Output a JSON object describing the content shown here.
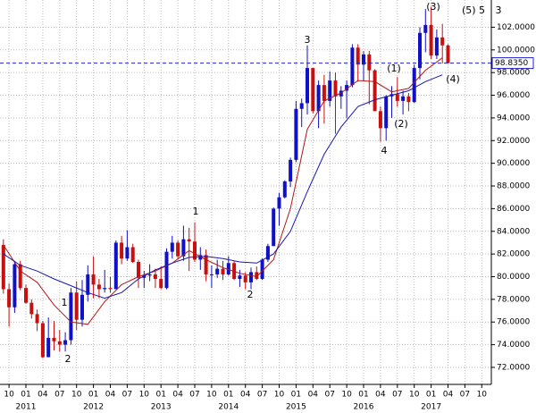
{
  "chart_data": {
    "type": "candlestick",
    "up_color": "#1010c8",
    "down_color": "#c81010",
    "grid": true,
    "x": [
      "2010-09",
      "2010-10",
      "2010-11",
      "2010-12",
      "2011-01",
      "2011-02",
      "2011-03",
      "2011-04",
      "2011-05",
      "2011-06",
      "2011-07",
      "2011-08",
      "2011-09",
      "2011-10",
      "2011-11",
      "2011-12",
      "2012-01",
      "2012-02",
      "2012-03",
      "2012-04",
      "2012-05",
      "2012-06",
      "2012-07",
      "2012-08",
      "2012-09",
      "2012-10",
      "2012-11",
      "2012-12",
      "2013-01",
      "2013-02",
      "2013-03",
      "2013-04",
      "2013-05",
      "2013-06",
      "2013-07",
      "2013-08",
      "2013-09",
      "2013-10",
      "2013-11",
      "2013-12",
      "2014-01",
      "2014-02",
      "2014-03",
      "2014-04",
      "2014-05",
      "2014-06",
      "2014-07",
      "2014-08",
      "2014-09",
      "2014-10",
      "2014-11",
      "2014-12",
      "2015-01",
      "2015-02",
      "2015-03",
      "2015-04",
      "2015-05",
      "2015-06",
      "2015-07",
      "2015-08",
      "2015-09",
      "2015-10",
      "2015-11",
      "2015-12",
      "2016-01",
      "2016-02",
      "2016-03",
      "2016-04",
      "2016-05",
      "2016-06",
      "2016-07",
      "2016-08",
      "2016-09",
      "2016-10",
      "2016-11",
      "2016-12",
      "2017-01",
      "2017-02",
      "2017-03",
      "2017-04"
    ],
    "open": [
      82.8,
      78.9,
      77.3,
      81.1,
      79.0,
      77.7,
      76.7,
      75.9,
      72.9,
      74.6,
      74.3,
      74.0,
      74.4,
      78.6,
      76.2,
      78.4,
      80.2,
      79.3,
      78.9,
      79.0,
      78.9,
      83.0,
      81.6,
      82.6,
      81.3,
      79.9,
      80.1,
      80.2,
      79.8,
      79.0,
      82.2,
      83.0,
      81.8,
      83.3,
      83.1,
      81.5,
      81.9,
      80.2,
      80.2,
      80.7,
      80.2,
      81.2,
      79.8,
      80.1,
      79.5,
      80.4,
      79.8,
      81.5,
      82.7,
      86.0,
      87.0,
      88.4,
      90.3,
      94.8,
      95.3,
      98.4,
      94.6,
      96.9,
      95.5,
      97.3,
      95.9,
      96.4,
      96.9,
      100.2,
      98.7,
      99.6,
      98.2,
      94.6,
      93.1,
      95.9,
      96.1,
      95.5,
      95.9,
      95.4,
      98.4,
      101.5,
      102.2,
      99.5,
      101.1,
      100.4
    ],
    "high": [
      83.3,
      79.4,
      81.4,
      81.4,
      79.3,
      78.0,
      77.1,
      76.1,
      76.4,
      76.1,
      75.3,
      75.1,
      79.0,
      79.6,
      79.7,
      81.0,
      81.8,
      79.8,
      80.6,
      80.0,
      83.2,
      83.6,
      84.1,
      82.9,
      81.5,
      80.5,
      81.1,
      80.7,
      80.9,
      82.5,
      83.6,
      83.2,
      84.5,
      84.3,
      84.8,
      82.6,
      82.4,
      81.0,
      81.5,
      81.4,
      81.8,
      81.4,
      80.6,
      80.4,
      80.8,
      80.9,
      81.6,
      82.9,
      86.1,
      87.4,
      88.5,
      90.5,
      95.5,
      95.7,
      100.4,
      98.4,
      97.3,
      97.8,
      98.1,
      98.0,
      96.8,
      97.3,
      100.5,
      100.5,
      99.9,
      99.9,
      98.3,
      95.0,
      96.0,
      96.8,
      97.6,
      96.4,
      96.2,
      98.7,
      102.0,
      103.6,
      103.8,
      101.8,
      102.3,
      100.5
    ],
    "low": [
      78.5,
      75.6,
      76.8,
      78.8,
      77.6,
      76.3,
      75.2,
      72.8,
      72.9,
      73.5,
      73.4,
      73.4,
      74.0,
      75.3,
      75.6,
      77.8,
      78.1,
      78.1,
      78.6,
      78.6,
      78.9,
      81.1,
      81.4,
      81.2,
      79.0,
      79.0,
      79.6,
      79.0,
      78.9,
      78.9,
      81.6,
      81.5,
      81.4,
      80.5,
      81.3,
      80.6,
      79.6,
      79.0,
      79.9,
      79.7,
      80.1,
      79.7,
      79.1,
      78.9,
      78.9,
      79.7,
      79.7,
      81.3,
      82.7,
      84.5,
      86.9,
      87.9,
      90.1,
      93.2,
      94.3,
      94.4,
      93.1,
      93.5,
      95.0,
      92.6,
      94.8,
      94.0,
      96.7,
      97.2,
      97.3,
      95.2,
      94.6,
      91.9,
      92.0,
      94.0,
      95.0,
      94.3,
      94.6,
      95.3,
      97.4,
      99.8,
      99.2,
      99.2,
      98.8,
      98.8
    ],
    "close": [
      78.9,
      77.3,
      81.1,
      79.0,
      77.7,
      76.7,
      75.9,
      72.9,
      74.6,
      74.3,
      74.0,
      74.4,
      78.6,
      76.2,
      78.4,
      80.2,
      79.3,
      78.9,
      79.0,
      78.9,
      83.0,
      81.6,
      82.6,
      81.3,
      79.9,
      80.1,
      80.2,
      79.8,
      79.0,
      82.2,
      83.0,
      81.8,
      83.3,
      83.1,
      81.5,
      81.9,
      80.2,
      80.2,
      80.7,
      80.2,
      81.2,
      79.8,
      80.1,
      79.5,
      80.4,
      79.8,
      81.5,
      82.7,
      86.0,
      87.0,
      88.4,
      90.3,
      94.8,
      95.3,
      98.4,
      94.6,
      96.9,
      95.5,
      97.3,
      95.9,
      96.4,
      96.9,
      100.2,
      98.7,
      99.6,
      98.2,
      94.6,
      93.1,
      95.9,
      96.1,
      95.5,
      95.9,
      95.4,
      98.4,
      101.5,
      102.2,
      99.5,
      101.1,
      100.4,
      98.835
    ],
    "lines": [
      {
        "color": "#b01818",
        "x": [
          "2010-09",
          "2010-12",
          "2011-03",
          "2011-06",
          "2011-09",
          "2011-12",
          "2012-03",
          "2012-06",
          "2012-09",
          "2012-12",
          "2013-03",
          "2013-06",
          "2013-09",
          "2013-12",
          "2014-03",
          "2014-06",
          "2014-09",
          "2014-12",
          "2015-03",
          "2015-06",
          "2015-09",
          "2015-12",
          "2016-03",
          "2016-06",
          "2016-09",
          "2016-12",
          "2017-03"
        ],
        "values": [
          82.8,
          80.5,
          79.5,
          77.5,
          76,
          75.8,
          77.8,
          79.3,
          80,
          80.5,
          81.2,
          82.3,
          81.5,
          80.8,
          80.3,
          80,
          81.5,
          86,
          93,
          95.5,
          96.2,
          97.3,
          97.2,
          96.3,
          96.6,
          98.2,
          99.3
        ]
      },
      {
        "color": "#1818b0",
        "x": [
          "2010-09",
          "2010-12",
          "2011-03",
          "2011-06",
          "2011-09",
          "2011-12",
          "2012-03",
          "2012-06",
          "2012-09",
          "2012-12",
          "2013-03",
          "2013-06",
          "2013-09",
          "2013-12",
          "2014-03",
          "2014-06",
          "2014-09",
          "2014-12",
          "2015-03",
          "2015-06",
          "2015-09",
          "2015-12",
          "2016-03",
          "2016-06",
          "2016-09",
          "2016-12",
          "2017-03"
        ],
        "values": [
          82,
          81,
          80.5,
          79.8,
          79.2,
          78.6,
          78.1,
          78.6,
          79.8,
          80.6,
          81.2,
          81.7,
          81.8,
          81.6,
          81.3,
          81.2,
          82,
          84,
          87.5,
          90.8,
          93.2,
          95,
          95.6,
          96,
          96.4,
          97.2,
          97.8
        ]
      }
    ],
    "xlim": [
      "2010-09",
      "2017-11"
    ],
    "ylim": [
      70.5,
      104.4
    ],
    "yticks": [
      {
        "value": 72,
        "label": "72.0000"
      },
      {
        "value": 74,
        "label": "74.0000"
      },
      {
        "value": 76,
        "label": "76.0000"
      },
      {
        "value": 78,
        "label": "78.0000"
      },
      {
        "value": 80,
        "label": "80.0000"
      },
      {
        "value": 82,
        "label": "82.0000"
      },
      {
        "value": 84,
        "label": "84.0000"
      },
      {
        "value": 86,
        "label": "86.0000"
      },
      {
        "value": 88,
        "label": "88.0000"
      },
      {
        "value": 90,
        "label": "90.0000"
      },
      {
        "value": 92,
        "label": "92.0000"
      },
      {
        "value": 94,
        "label": "94.0000"
      },
      {
        "value": 96,
        "label": "96.0000"
      },
      {
        "value": 98,
        "label": "98.0000"
      },
      {
        "value": 100,
        "label": "100.0000"
      },
      {
        "value": 102,
        "label": "102.0000"
      }
    ],
    "xticks": [
      {
        "value": "2010-10",
        "label": "10"
      },
      {
        "value": "2011-01",
        "label": "01"
      },
      {
        "value": "2011-04",
        "label": "04"
      },
      {
        "value": "2011-07",
        "label": "07"
      },
      {
        "value": "2011-10",
        "label": "10"
      },
      {
        "value": "2012-01",
        "label": "01"
      },
      {
        "value": "2012-04",
        "label": "04"
      },
      {
        "value": "2012-07",
        "label": "07"
      },
      {
        "value": "2012-10",
        "label": "10"
      },
      {
        "value": "2013-01",
        "label": "01"
      },
      {
        "value": "2013-04",
        "label": "04"
      },
      {
        "value": "2013-07",
        "label": "07"
      },
      {
        "value": "2013-10",
        "label": "10"
      },
      {
        "value": "2014-01",
        "label": "01"
      },
      {
        "value": "2014-04",
        "label": "04"
      },
      {
        "value": "2014-07",
        "label": "07"
      },
      {
        "value": "2014-10",
        "label": "10"
      },
      {
        "value": "2015-01",
        "label": "01"
      },
      {
        "value": "2015-04",
        "label": "04"
      },
      {
        "value": "2015-07",
        "label": "07"
      },
      {
        "value": "2015-10",
        "label": "10"
      },
      {
        "value": "2016-01",
        "label": "01"
      },
      {
        "value": "2016-04",
        "label": "04"
      },
      {
        "value": "2016-07",
        "label": "07"
      },
      {
        "value": "2016-10",
        "label": "10"
      },
      {
        "value": "2017-01",
        "label": "01"
      },
      {
        "value": "2017-04",
        "label": "04"
      },
      {
        "value": "2017-07",
        "label": "07"
      },
      {
        "value": "2017-10",
        "label": "10"
      }
    ],
    "year_labels": [
      {
        "value": "2011-01",
        "label": "2011"
      },
      {
        "value": "2012-01",
        "label": "2012"
      },
      {
        "value": "2013-01",
        "label": "2013"
      },
      {
        "value": "2014-01",
        "label": "2014"
      },
      {
        "value": "2015-01",
        "label": "2015"
      },
      {
        "value": "2016-01",
        "label": "2016"
      },
      {
        "value": "2017-01",
        "label": "2017"
      }
    ],
    "reference_line": {
      "value": 98.835,
      "label": "98.8350",
      "color": "#2020d0"
    },
    "annotations": [
      {
        "text": "1",
        "color": "#c81010"
      },
      {
        "text": "2",
        "color": "#c81010"
      },
      {
        "text": "1",
        "color": "#2020b0"
      },
      {
        "text": "2",
        "color": "#2020b0"
      },
      {
        "text": "3",
        "color": "#2020b0"
      },
      {
        "text": "4",
        "color": "#2020b0"
      },
      {
        "text": "(1)",
        "color": "#2020b0"
      },
      {
        "text": "(2)",
        "color": "#2020b0"
      },
      {
        "text": "(3)",
        "color": "#2020b0"
      },
      {
        "text": "(4)",
        "color": "#2020b0"
      },
      {
        "text": "(5) 5",
        "color": "#2020b0"
      },
      {
        "text": "3",
        "color": "#c81010"
      }
    ]
  }
}
